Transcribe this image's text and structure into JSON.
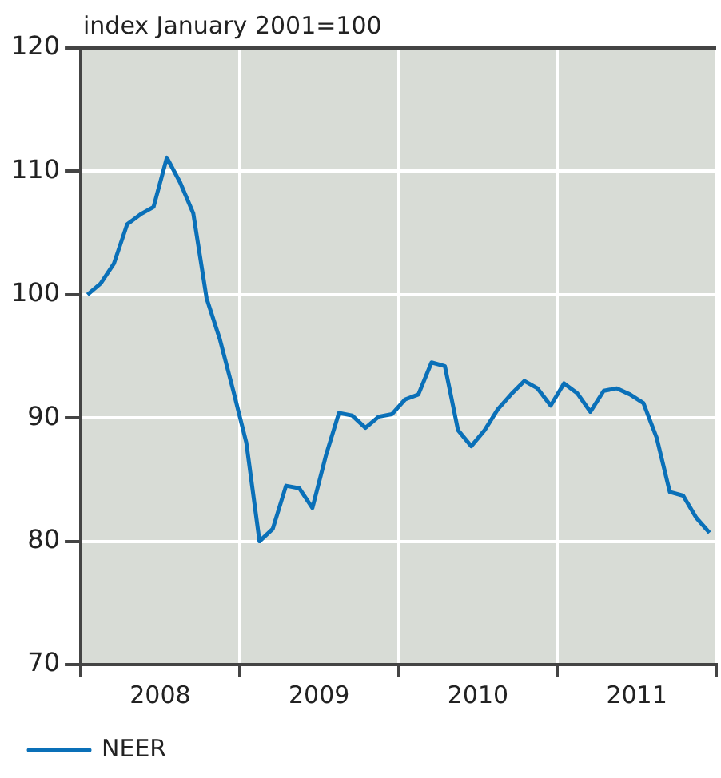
{
  "chart_data": {
    "type": "line",
    "title": "index January 2001=100",
    "x": [
      2008.042,
      2008.125,
      2008.208,
      2008.292,
      2008.375,
      2008.458,
      2008.542,
      2008.625,
      2008.708,
      2008.792,
      2008.875,
      2008.958,
      2009.042,
      2009.125,
      2009.208,
      2009.292,
      2009.375,
      2009.458,
      2009.542,
      2009.625,
      2009.708,
      2009.792,
      2009.875,
      2009.958,
      2010.042,
      2010.125,
      2010.208,
      2010.292,
      2010.375,
      2010.458,
      2010.542,
      2010.625,
      2010.708,
      2010.792,
      2010.875,
      2010.958,
      2011.042,
      2011.125,
      2011.208,
      2011.292,
      2011.375,
      2011.458,
      2011.542,
      2011.625,
      2011.708,
      2011.792,
      2011.875,
      2011.958
    ],
    "series": [
      {
        "name": "NEER",
        "color": "#0a70b8",
        "values": [
          100.0,
          100.9,
          102.5,
          105.7,
          106.5,
          107.1,
          111.1,
          109.1,
          106.6,
          99.7,
          96.4,
          92.3,
          88.0,
          80.0,
          81.0,
          84.5,
          84.3,
          82.7,
          86.9,
          90.4,
          90.2,
          89.2,
          90.1,
          90.3,
          91.5,
          91.9,
          94.5,
          94.2,
          89.0,
          87.7,
          89.0,
          90.7,
          91.9,
          93.0,
          92.4,
          91.0,
          92.8,
          92.0,
          90.5,
          92.2,
          92.4,
          91.9,
          91.2,
          88.4,
          84.0,
          83.7,
          81.9,
          80.7
        ]
      }
    ],
    "xlim": [
      2008,
      2012
    ],
    "xticks": [
      {
        "value": 2008,
        "label": null
      },
      {
        "value": 2008.5,
        "label": "2008"
      },
      {
        "value": 2009,
        "label": null
      },
      {
        "value": 2009.5,
        "label": "2009"
      },
      {
        "value": 2010,
        "label": null
      },
      {
        "value": 2010.5,
        "label": "2010"
      },
      {
        "value": 2011,
        "label": null
      },
      {
        "value": 2011.5,
        "label": "2011"
      },
      {
        "value": 2012,
        "label": null
      }
    ],
    "ylim": [
      70,
      120
    ],
    "yticks": [
      70,
      80,
      90,
      100,
      110,
      120
    ],
    "grid": true,
    "legend": "bottom left",
    "marker": "none",
    "line_style": "solid"
  }
}
